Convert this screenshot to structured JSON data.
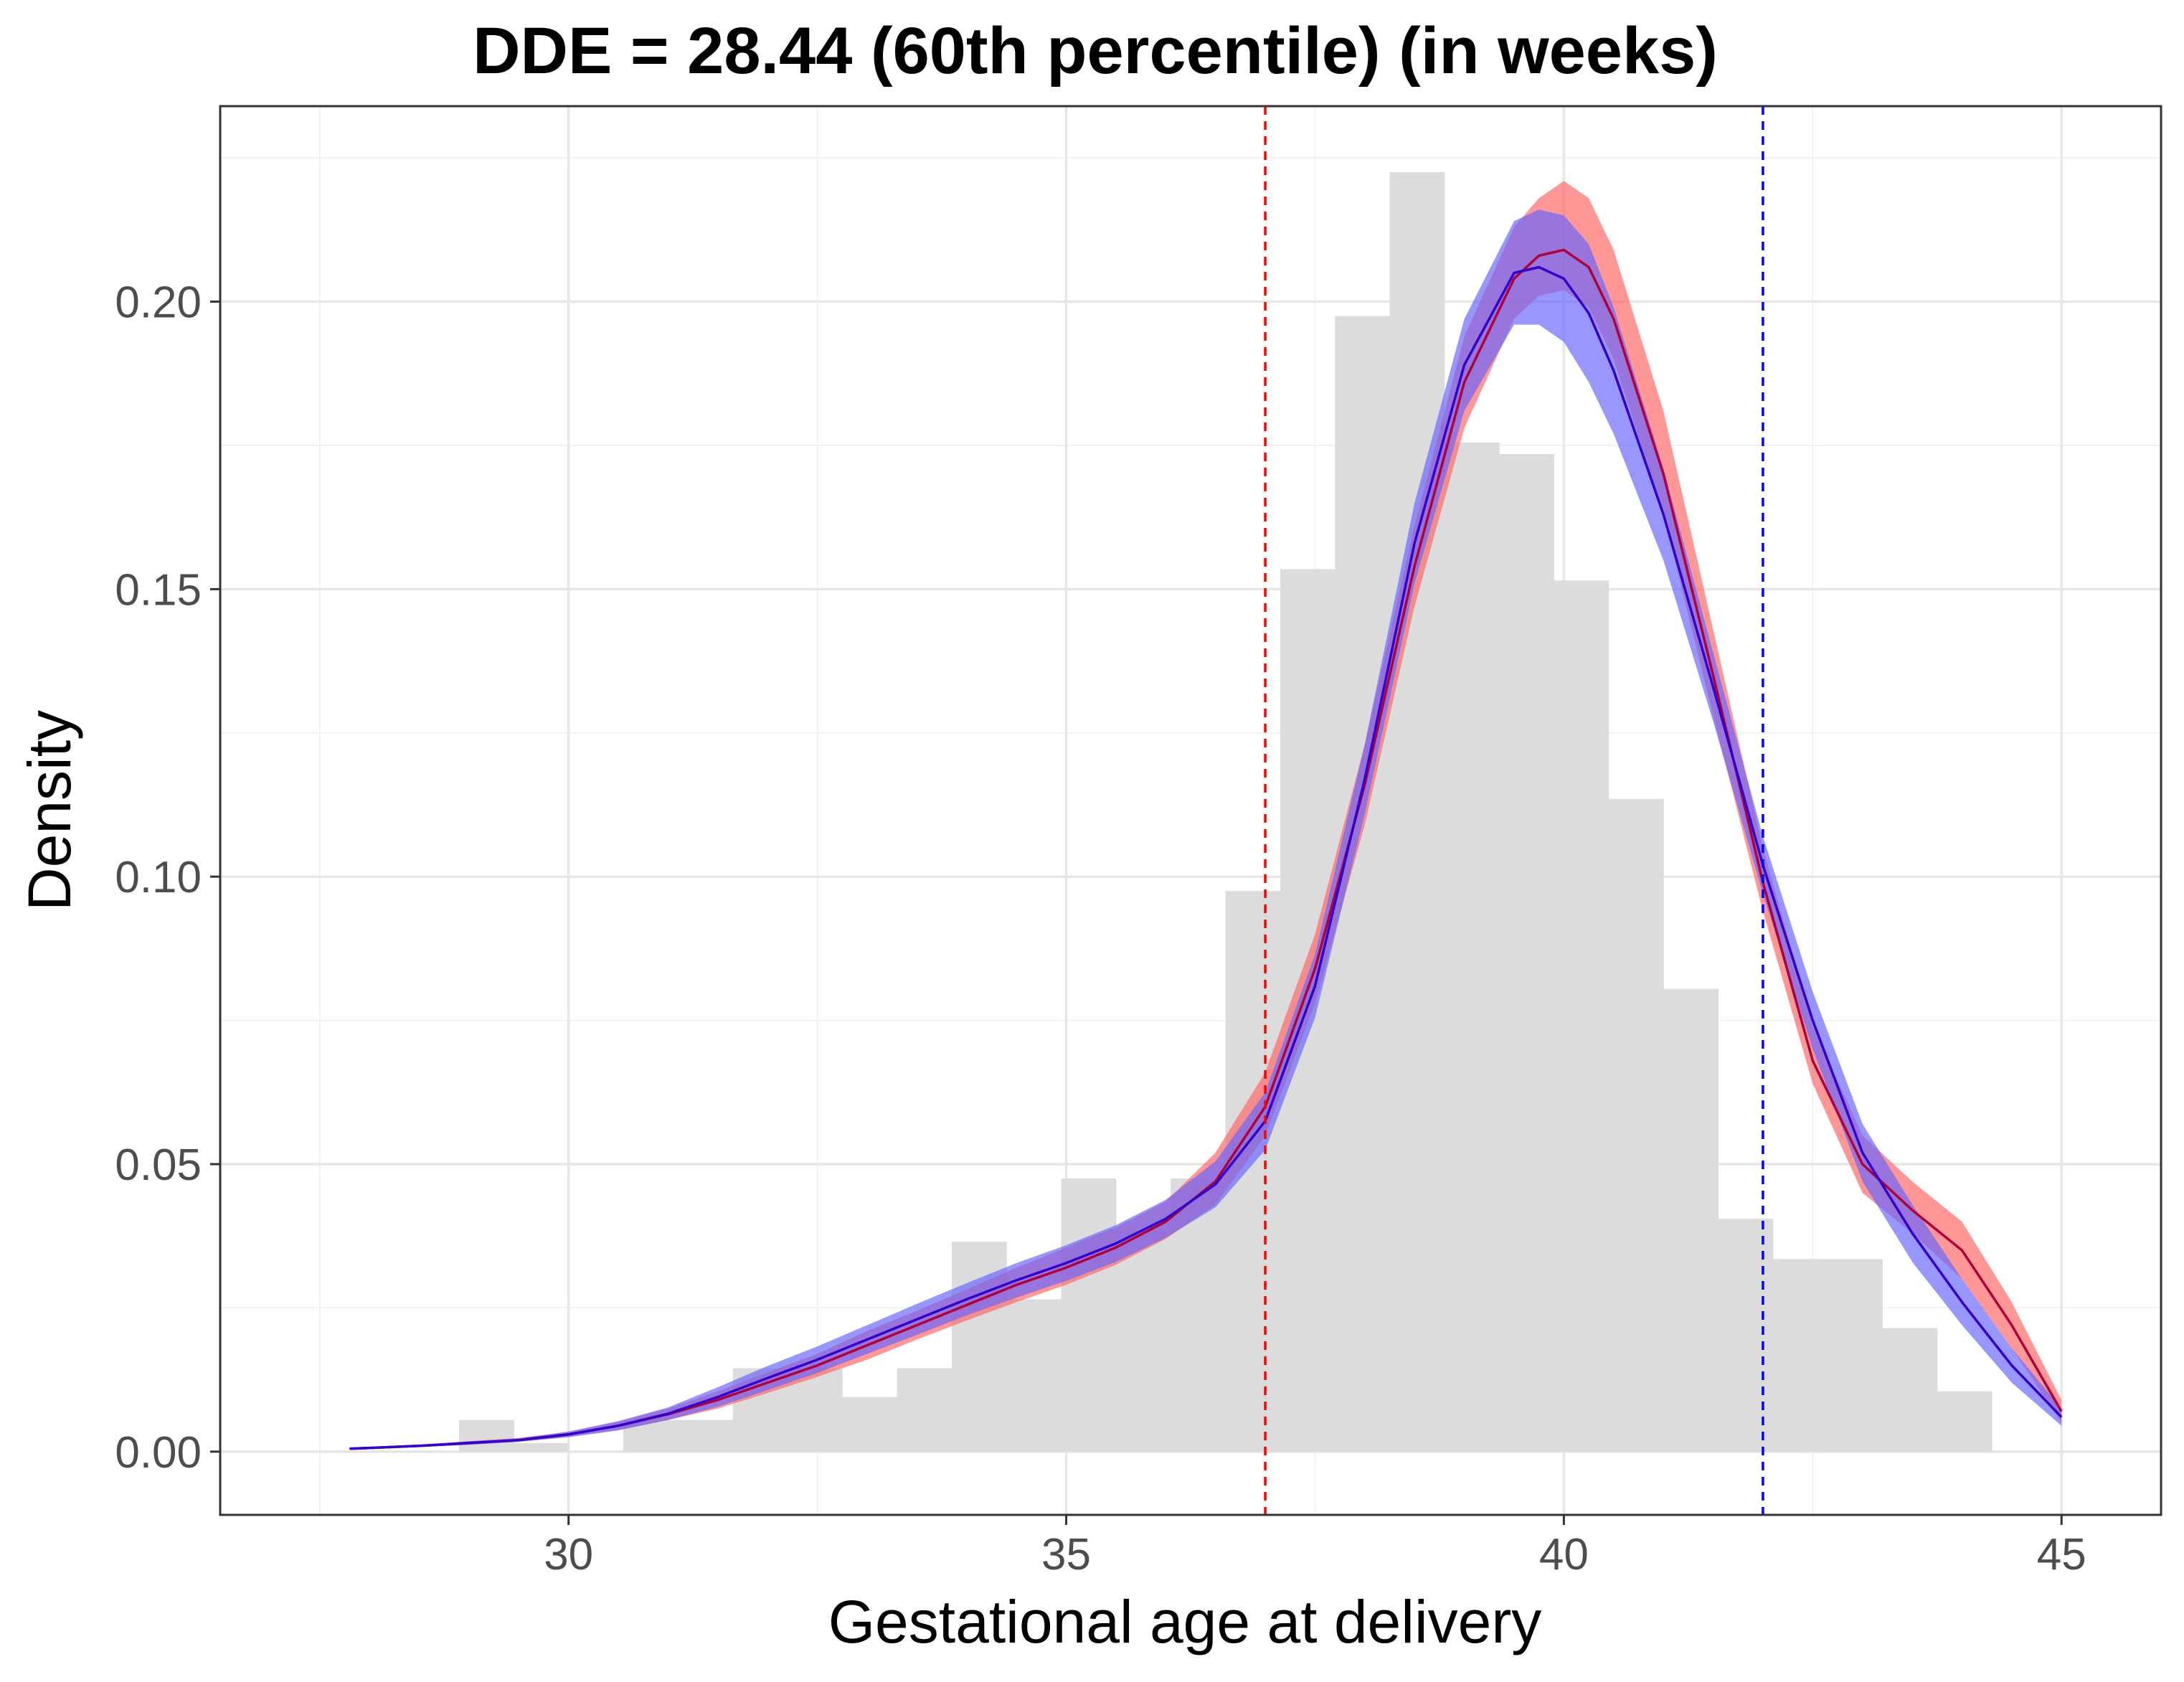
{
  "chart_data": {
    "type": "area",
    "title": "DDE = 28.44 (60th percentile) (in weeks)",
    "xlabel": "Gestational age at delivery",
    "ylabel": "Density",
    "xlim": [
      26.5,
      46.0
    ],
    "ylim": [
      -0.011,
      0.234
    ],
    "x_ticks": [
      30,
      35,
      40,
      45
    ],
    "x_tick_labels": [
      "30",
      "35",
      "40",
      "45"
    ],
    "y_ticks": [
      0.0,
      0.05,
      0.1,
      0.15,
      0.2
    ],
    "y_tick_labels": [
      "0.00",
      "0.05",
      "0.10",
      "0.15",
      "0.20"
    ],
    "grid": true,
    "colors": {
      "histogram": "#dcdcdc",
      "red_band": "#ff6666",
      "blue_band": "#6666ff",
      "red_line": "#b0003a",
      "blue_line": "#3300cc",
      "red_vline": "#ff0000",
      "blue_vline": "#0000ff",
      "grid_major": "#e6e6e6",
      "grid_minor": "#f2f2f2",
      "panel_border": "#333333"
    },
    "histogram": {
      "bin_width": 0.55,
      "start": 28.9,
      "heights": [
        0.0055,
        0.0015,
        0.0,
        0.0055,
        0.0055,
        0.0145,
        0.0145,
        0.0095,
        0.0145,
        0.0365,
        0.0265,
        0.0475,
        0.0385,
        0.0475,
        0.0975,
        0.1535,
        0.1975,
        0.2225,
        0.1755,
        0.1735,
        0.1515,
        0.1135,
        0.0805,
        0.0405,
        0.0335,
        0.0335,
        0.0215,
        0.0105
      ]
    },
    "reference_lines": [
      {
        "name": "red-reference-line",
        "x": 37.0,
        "color": "#ff0000",
        "style": "dashed"
      },
      {
        "name": "blue-reference-line",
        "x": 42.0,
        "color": "#0000ff",
        "style": "dashed"
      }
    ],
    "x": [
      27.8,
      28.5,
      29.0,
      29.5,
      30.0,
      30.5,
      31.0,
      31.5,
      32.0,
      32.5,
      33.0,
      33.5,
      34.0,
      34.5,
      35.0,
      35.5,
      36.0,
      36.5,
      37.0,
      37.5,
      38.0,
      38.5,
      39.0,
      39.5,
      39.75,
      40.0,
      40.25,
      40.5,
      41.0,
      41.5,
      42.0,
      42.5,
      43.0,
      43.5,
      44.0,
      44.5,
      45.0
    ],
    "series": [
      {
        "name": "red",
        "color": "#b0003a",
        "band_color": "#ff6666",
        "values": [
          0.0005,
          0.001,
          0.0015,
          0.002,
          0.003,
          0.0045,
          0.0065,
          0.009,
          0.012,
          0.015,
          0.0185,
          0.022,
          0.0255,
          0.029,
          0.032,
          0.0355,
          0.04,
          0.047,
          0.06,
          0.084,
          0.116,
          0.154,
          0.186,
          0.204,
          0.208,
          0.209,
          0.206,
          0.197,
          0.17,
          0.135,
          0.099,
          0.068,
          0.05,
          0.042,
          0.035,
          0.022,
          0.007
        ],
        "lower": [
          0.0004,
          0.0008,
          0.0012,
          0.0018,
          0.0026,
          0.0038,
          0.0055,
          0.0075,
          0.0102,
          0.013,
          0.016,
          0.0195,
          0.0228,
          0.026,
          0.029,
          0.0325,
          0.037,
          0.043,
          0.055,
          0.078,
          0.109,
          0.147,
          0.178,
          0.197,
          0.201,
          0.202,
          0.199,
          0.19,
          0.163,
          0.128,
          0.094,
          0.064,
          0.045,
          0.038,
          0.03,
          0.018,
          0.005
        ],
        "upper": [
          0.0006,
          0.0012,
          0.0018,
          0.0024,
          0.0034,
          0.0052,
          0.0075,
          0.0105,
          0.0138,
          0.017,
          0.021,
          0.0245,
          0.0282,
          0.032,
          0.0355,
          0.039,
          0.0435,
          0.052,
          0.066,
          0.09,
          0.123,
          0.161,
          0.194,
          0.213,
          0.218,
          0.221,
          0.218,
          0.209,
          0.181,
          0.143,
          0.105,
          0.074,
          0.055,
          0.047,
          0.04,
          0.026,
          0.009
        ]
      },
      {
        "name": "blue",
        "color": "#3300cc",
        "band_color": "#6666ff",
        "values": [
          0.0005,
          0.001,
          0.0015,
          0.002,
          0.003,
          0.0045,
          0.0066,
          0.0095,
          0.0128,
          0.016,
          0.0195,
          0.023,
          0.0265,
          0.0298,
          0.0328,
          0.0362,
          0.0405,
          0.0465,
          0.0575,
          0.081,
          0.117,
          0.158,
          0.189,
          0.205,
          0.206,
          0.204,
          0.198,
          0.188,
          0.163,
          0.133,
          0.102,
          0.075,
          0.052,
          0.038,
          0.026,
          0.015,
          0.006
        ],
        "lower": [
          0.0004,
          0.0008,
          0.0012,
          0.0017,
          0.0025,
          0.0037,
          0.0055,
          0.0078,
          0.0107,
          0.0137,
          0.017,
          0.0203,
          0.0237,
          0.0268,
          0.0297,
          0.033,
          0.0372,
          0.0425,
          0.0525,
          0.0755,
          0.111,
          0.151,
          0.181,
          0.196,
          0.196,
          0.193,
          0.186,
          0.177,
          0.155,
          0.127,
          0.097,
          0.07,
          0.047,
          0.033,
          0.022,
          0.012,
          0.0045
        ],
        "upper": [
          0.0006,
          0.0012,
          0.0018,
          0.0023,
          0.0035,
          0.0053,
          0.0077,
          0.0112,
          0.0149,
          0.0183,
          0.022,
          0.0257,
          0.0293,
          0.0328,
          0.0359,
          0.0394,
          0.0438,
          0.0505,
          0.0625,
          0.0865,
          0.123,
          0.165,
          0.197,
          0.214,
          0.216,
          0.215,
          0.21,
          0.199,
          0.171,
          0.139,
          0.107,
          0.08,
          0.057,
          0.043,
          0.03,
          0.018,
          0.0075
        ]
      }
    ]
  }
}
